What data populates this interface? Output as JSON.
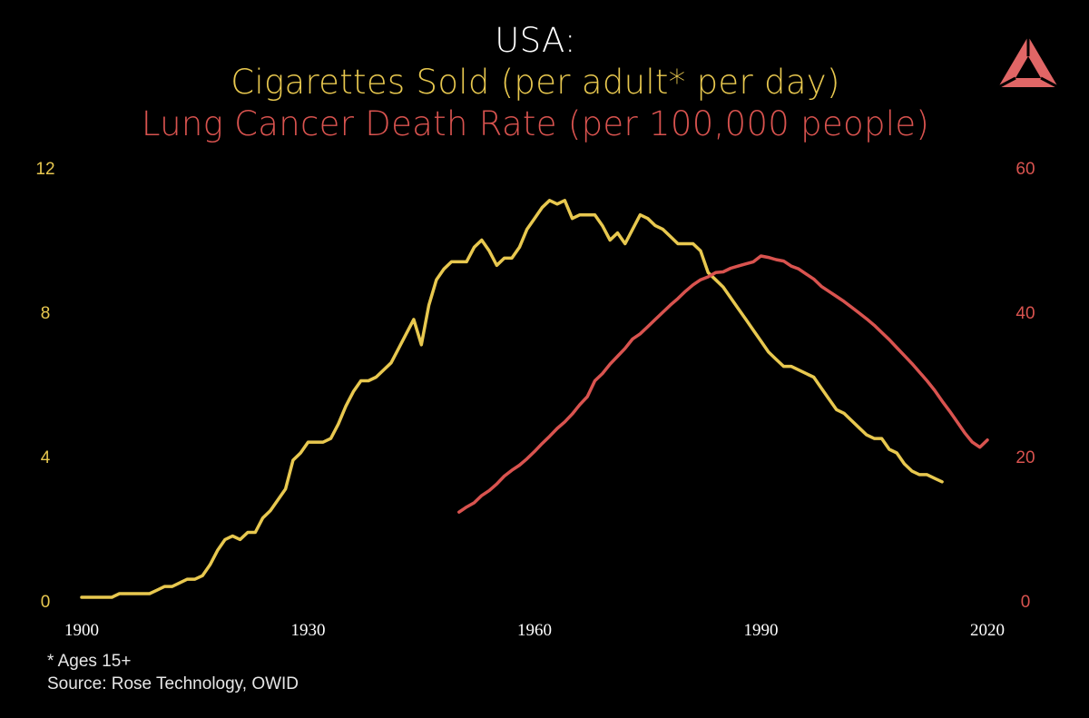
{
  "header": {
    "title": "USA:",
    "subtitle_cigarettes": "Cigarettes Sold (per adult* per day)",
    "subtitle_lung": "Lung Cancer Death Rate (per 100,000 people)"
  },
  "logo": {
    "icon": "triangle-logo-icon",
    "color": "#E06666"
  },
  "footnote": {
    "note": "* Ages 15+",
    "source": "Source: Rose Technology, OWID"
  },
  "colors": {
    "background": "#000000",
    "cigarettes": "#E8C84F",
    "lung_cancer": "#D9534F",
    "x_axis_text": "#ffffff"
  },
  "chart_data": {
    "type": "line",
    "title": "USA:",
    "x_ticks": [
      "1900",
      "1930",
      "1960",
      "1990",
      "2020"
    ],
    "x_tick_values": [
      1900,
      1930,
      1960,
      1990,
      2020
    ],
    "xlim": [
      1900,
      2020
    ],
    "y_left": {
      "ticks": [
        "0",
        "4",
        "8",
        "12"
      ],
      "tick_values": [
        0,
        4,
        8,
        12
      ],
      "ylim": [
        0,
        12
      ]
    },
    "y_right": {
      "ticks": [
        "0",
        "20",
        "40",
        "60"
      ],
      "tick_values": [
        0,
        20,
        40,
        60
      ],
      "ylim": [
        0,
        60
      ]
    },
    "grid": false,
    "series": [
      {
        "name": "Cigarettes Sold (per adult* per day)",
        "axis": "left",
        "color": "#E8C84F",
        "x": [
          1900,
          1901,
          1902,
          1903,
          1904,
          1905,
          1906,
          1907,
          1908,
          1909,
          1910,
          1911,
          1912,
          1913,
          1914,
          1915,
          1916,
          1917,
          1918,
          1919,
          1920,
          1921,
          1922,
          1923,
          1924,
          1925,
          1926,
          1927,
          1928,
          1929,
          1930,
          1931,
          1932,
          1933,
          1934,
          1935,
          1936,
          1937,
          1938,
          1939,
          1940,
          1941,
          1942,
          1943,
          1944,
          1945,
          1946,
          1947,
          1948,
          1949,
          1950,
          1951,
          1952,
          1953,
          1954,
          1955,
          1956,
          1957,
          1958,
          1959,
          1960,
          1961,
          1962,
          1963,
          1964,
          1965,
          1966,
          1967,
          1968,
          1969,
          1970,
          1971,
          1972,
          1973,
          1974,
          1975,
          1976,
          1977,
          1978,
          1979,
          1980,
          1981,
          1982,
          1983,
          1984,
          1985,
          1986,
          1987,
          1988,
          1989,
          1990,
          1991,
          1992,
          1993,
          1994,
          1995,
          1996,
          1997,
          1998,
          1999,
          2000,
          2001,
          2002,
          2003,
          2004,
          2005,
          2006,
          2007,
          2008,
          2009,
          2010,
          2011,
          2012,
          2013,
          2014
        ],
        "values": [
          0.1,
          0.1,
          0.1,
          0.1,
          0.1,
          0.2,
          0.2,
          0.2,
          0.2,
          0.2,
          0.3,
          0.4,
          0.4,
          0.5,
          0.6,
          0.6,
          0.7,
          1.0,
          1.4,
          1.7,
          1.8,
          1.7,
          1.9,
          1.9,
          2.3,
          2.5,
          2.8,
          3.1,
          3.9,
          4.1,
          4.4,
          4.4,
          4.4,
          4.5,
          4.9,
          5.4,
          5.8,
          6.1,
          6.1,
          6.2,
          6.4,
          6.6,
          7.0,
          7.4,
          7.8,
          7.1,
          8.2,
          8.9,
          9.2,
          9.4,
          9.4,
          9.4,
          9.8,
          10.0,
          9.7,
          9.3,
          9.5,
          9.5,
          9.8,
          10.3,
          10.6,
          10.9,
          11.1,
          11.0,
          11.1,
          10.6,
          10.7,
          10.7,
          10.7,
          10.4,
          10.0,
          10.2,
          9.9,
          10.3,
          10.7,
          10.6,
          10.4,
          10.3,
          10.1,
          9.9,
          9.9,
          9.9,
          9.7,
          9.1,
          8.9,
          8.7,
          8.4,
          8.1,
          7.8,
          7.5,
          7.2,
          6.9,
          6.7,
          6.5,
          6.5,
          6.4,
          6.3,
          6.2,
          5.9,
          5.6,
          5.3,
          5.2,
          5.0,
          4.8,
          4.6,
          4.5,
          4.5,
          4.2,
          4.1,
          3.8,
          3.6,
          3.5,
          3.5,
          3.4,
          3.3
        ]
      },
      {
        "name": "Lung Cancer Death Rate (per 100,000 people)",
        "axis": "right",
        "color": "#D9534F",
        "x": [
          1950,
          1951,
          1952,
          1953,
          1954,
          1955,
          1956,
          1957,
          1958,
          1959,
          1960,
          1961,
          1962,
          1963,
          1964,
          1965,
          1966,
          1967,
          1968,
          1969,
          1970,
          1971,
          1972,
          1973,
          1974,
          1975,
          1976,
          1977,
          1978,
          1979,
          1980,
          1981,
          1982,
          1983,
          1984,
          1985,
          1986,
          1987,
          1988,
          1989,
          1990,
          1991,
          1992,
          1993,
          1994,
          1995,
          1996,
          1997,
          1998,
          1999,
          2000,
          2001,
          2002,
          2003,
          2004,
          2005,
          2006,
          2007,
          2008,
          2009,
          2010,
          2011,
          2012,
          2013,
          2014,
          2015,
          2016,
          2017,
          2018,
          2019,
          2020
        ],
        "values": [
          12.3,
          13.0,
          13.6,
          14.6,
          15.3,
          16.2,
          17.3,
          18.1,
          18.8,
          19.7,
          20.7,
          21.8,
          22.8,
          23.9,
          24.8,
          25.9,
          27.2,
          28.3,
          30.5,
          31.5,
          32.8,
          33.9,
          35.0,
          36.3,
          37.0,
          38.0,
          39.0,
          40.0,
          41.0,
          41.9,
          42.9,
          43.8,
          44.5,
          44.9,
          45.5,
          45.6,
          46.1,
          46.4,
          46.7,
          47.0,
          47.8,
          47.6,
          47.3,
          47.1,
          46.4,
          46.0,
          45.3,
          44.6,
          43.6,
          42.9,
          42.2,
          41.5,
          40.7,
          39.9,
          39.1,
          38.2,
          37.2,
          36.2,
          35.1,
          34.0,
          32.9,
          31.7,
          30.5,
          29.2,
          27.7,
          26.3,
          24.8,
          23.3,
          22.0,
          21.3,
          22.3
        ]
      }
    ]
  }
}
